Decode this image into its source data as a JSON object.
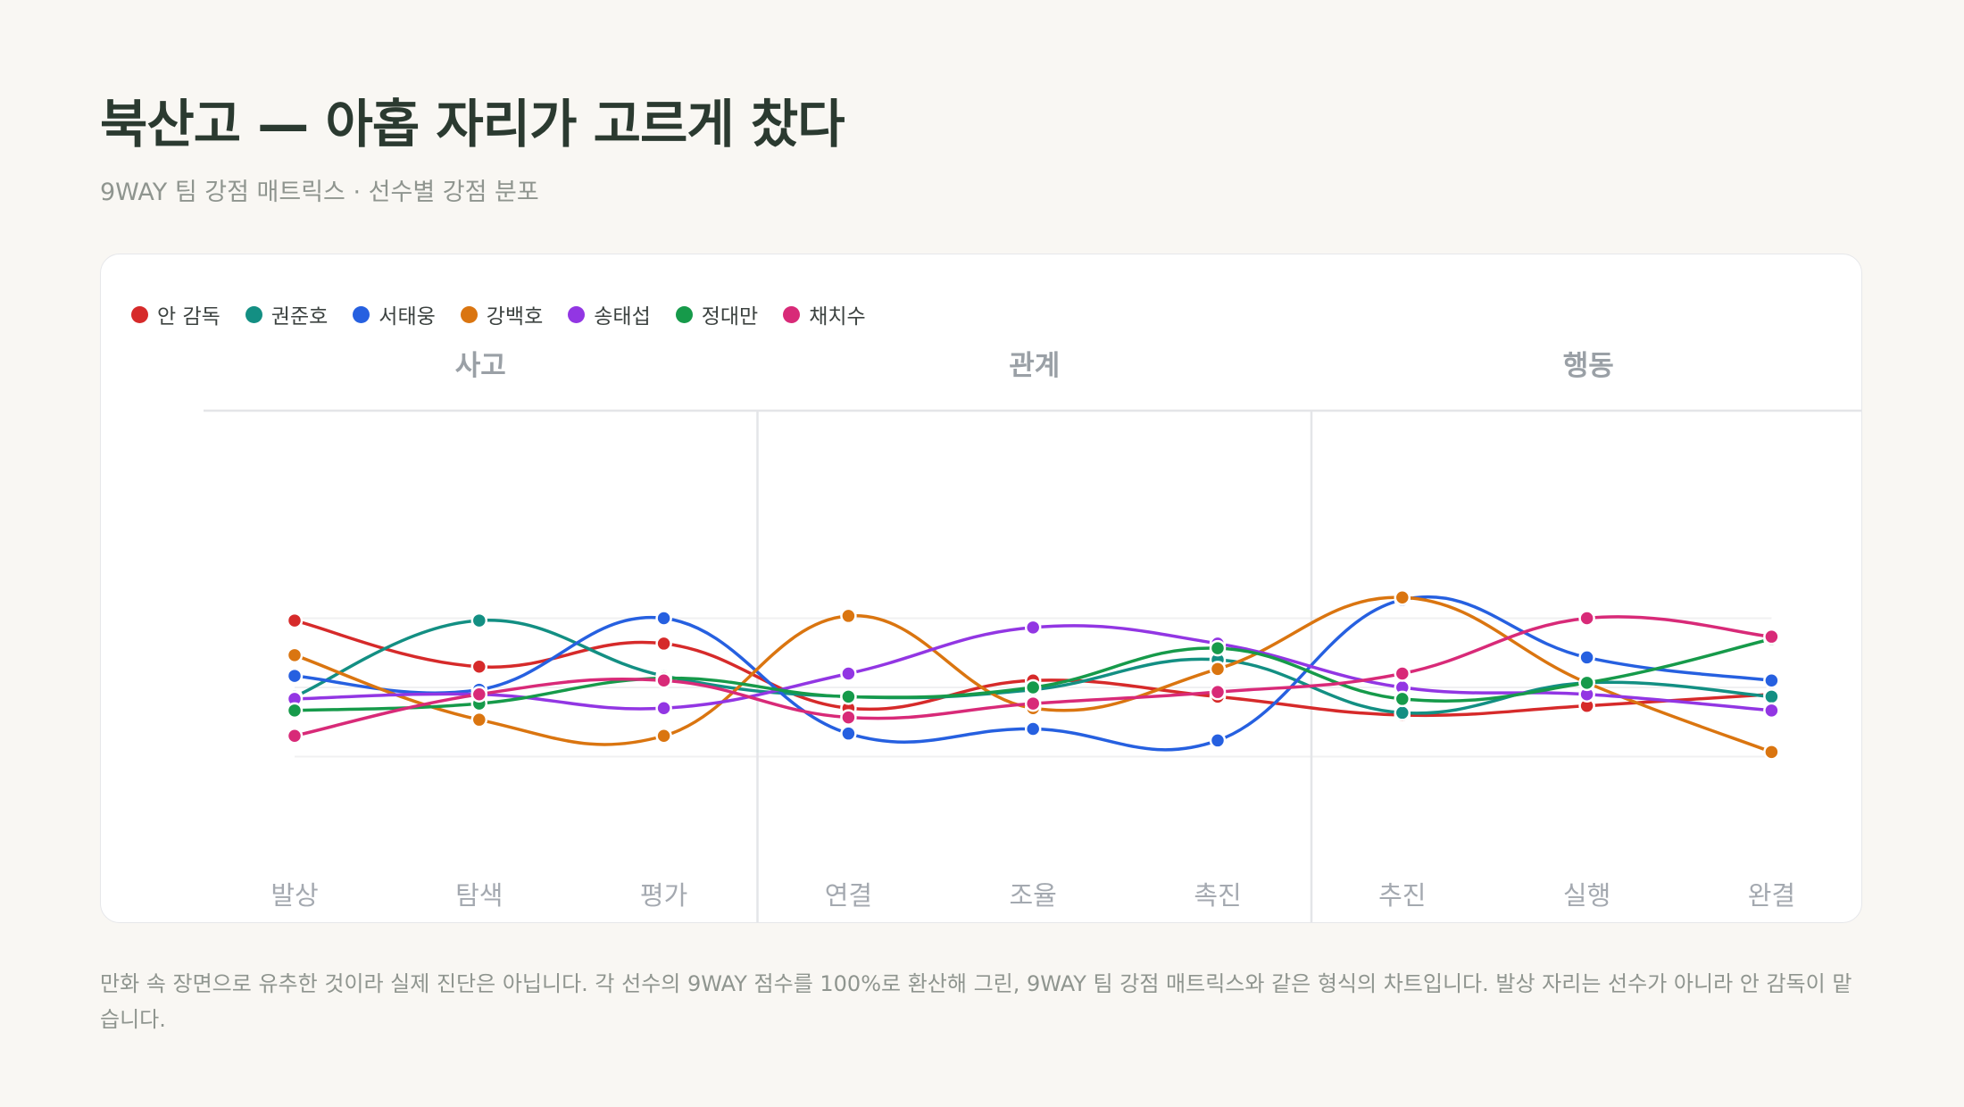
{
  "title": "북산고 — 아홉 자리가 고르게 찼다",
  "subtitle": "9WAY 팀 강점 매트릭스 · 선수별 강점 분포",
  "footnote": "만화 속 장면으로 유추한 것이라 실제 진단은 아닙니다. 각 선수의 9WAY 점수를 100%로 환산해 그린, 9WAY 팀 강점 매트릭스와 같은 형식의 차트입니다. 발상 자리는 선수가 아니라 안 감독이 맡습니다.",
  "chart_data": {
    "type": "line",
    "groups": [
      {
        "label": "사고",
        "categories": [
          "발상",
          "탐색",
          "평가"
        ]
      },
      {
        "label": "관계",
        "categories": [
          "연결",
          "조율",
          "촉진"
        ]
      },
      {
        "label": "행동",
        "categories": [
          "추진",
          "실행",
          "완결"
        ]
      }
    ],
    "categories": [
      "발상",
      "탐색",
      "평가",
      "연결",
      "조율",
      "촉진",
      "추진",
      "실행",
      "완결"
    ],
    "ylim": [
      5,
      17
    ],
    "grid": true,
    "legend": "top-left",
    "series": [
      {
        "name": "안 감독",
        "color": "#d62a2a",
        "values": [
          13.9,
          11.9,
          12.9,
          10.1,
          11.3,
          10.6,
          9.8,
          10.2,
          10.7
        ]
      },
      {
        "name": "권준호",
        "color": "#138f83",
        "values": [
          10.6,
          13.9,
          11.5,
          10.6,
          10.9,
          12.2,
          9.9,
          11.2,
          10.6
        ]
      },
      {
        "name": "서태웅",
        "color": "#2660e0",
        "values": [
          11.5,
          10.9,
          14.0,
          9.0,
          9.2,
          8.7,
          14.8,
          12.3,
          11.3
        ]
      },
      {
        "name": "강백호",
        "color": "#da7510",
        "values": [
          12.4,
          9.6,
          8.9,
          14.1,
          10.1,
          11.8,
          14.9,
          11.2,
          8.2
        ]
      },
      {
        "name": "송태섭",
        "color": "#9236e3",
        "values": [
          10.5,
          10.7,
          10.1,
          11.6,
          13.6,
          12.9,
          11.0,
          10.7,
          10.0
        ]
      },
      {
        "name": "정대만",
        "color": "#169a4a",
        "values": [
          10.0,
          10.3,
          11.4,
          10.6,
          11.0,
          12.7,
          10.5,
          11.2,
          13.1
        ]
      },
      {
        "name": "채치수",
        "color": "#d82a78",
        "values": [
          8.9,
          10.7,
          11.3,
          9.7,
          10.3,
          10.8,
          11.6,
          14.0,
          13.2
        ]
      }
    ]
  }
}
